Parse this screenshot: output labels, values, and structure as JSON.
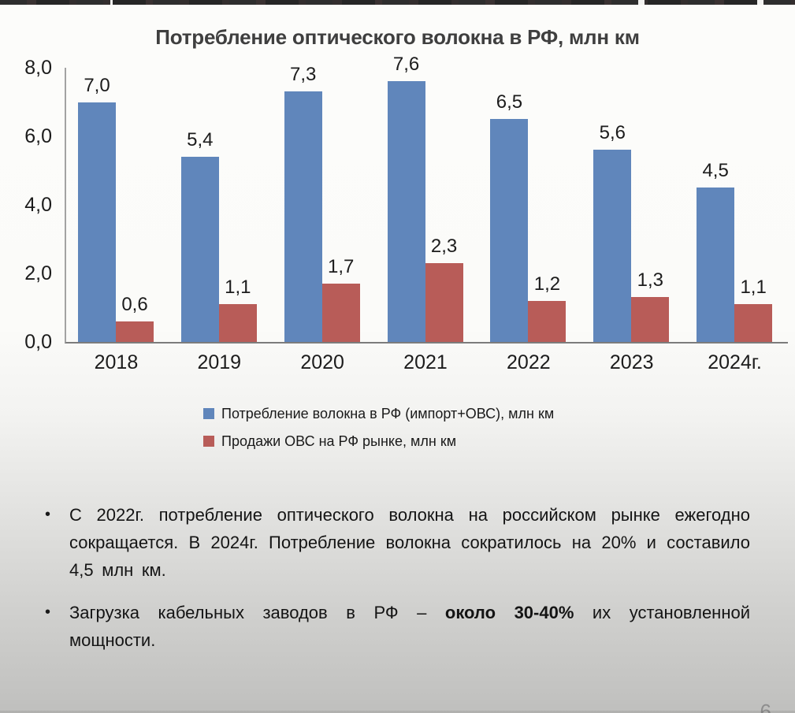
{
  "page_number": "6",
  "bullet_char": "•",
  "chart_data": {
    "type": "bar",
    "title": "Потребление оптического волокна в РФ, млн км",
    "categories": [
      "2018",
      "2019",
      "2020",
      "2021",
      "2022",
      "2023",
      "2024г."
    ],
    "series": [
      {
        "name": "Потребление волокна в РФ (импорт+ОВС), млн км",
        "key": "consumption",
        "color": "#6086bb",
        "values": [
          7.0,
          5.4,
          7.3,
          7.6,
          6.5,
          5.6,
          4.5
        ],
        "labels": [
          "7,0",
          "5,4",
          "7,3",
          "7,6",
          "6,5",
          "5,6",
          "4,5"
        ]
      },
      {
        "name": "Продажи ОВС на РФ рынке, млн км",
        "key": "ovs-sales",
        "color": "#b85c58",
        "values": [
          0.6,
          1.1,
          1.7,
          2.3,
          1.2,
          1.3,
          1.1
        ],
        "labels": [
          "0,6",
          "1,1",
          "1,7",
          "2,3",
          "1,2",
          "1,3",
          "1,1"
        ]
      }
    ],
    "yticks": [
      {
        "label": "8,0",
        "value": 8
      },
      {
        "label": "6,0",
        "value": 6
      },
      {
        "label": "4,0",
        "value": 4
      },
      {
        "label": "2,0",
        "value": 2
      },
      {
        "label": "0,0",
        "value": 0
      }
    ],
    "ylim": [
      0,
      8
    ],
    "xlabel": "",
    "ylabel": "",
    "grid": false,
    "legend_position": "bottom"
  },
  "bullets": [
    {
      "text": "С 2022г. потребление оптического волокна на российском рынке ежегодно сокращается. В 2024г. Потребление волокна сократилось на 20% и составило 4,5 млн км."
    },
    {
      "pre": "Загрузка кабельных заводов в РФ – ",
      "bold": "около 30-40%",
      "post": " их установленной мощности."
    }
  ]
}
